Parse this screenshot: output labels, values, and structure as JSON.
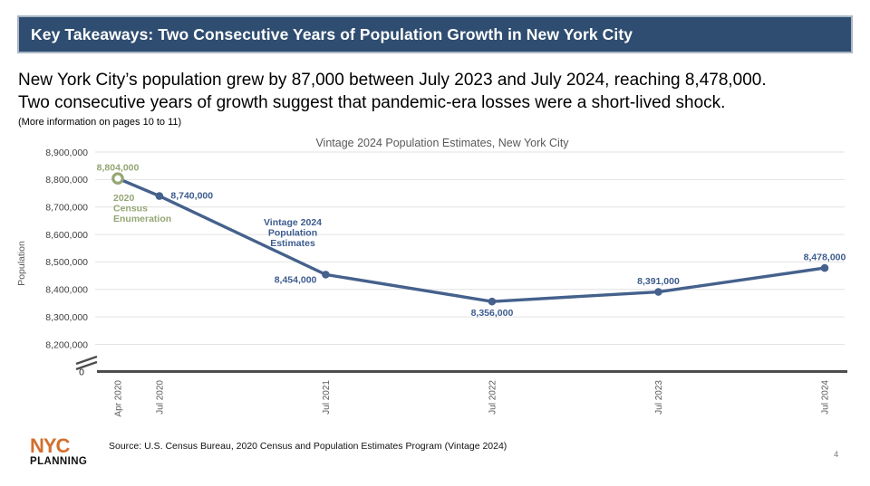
{
  "slide": {
    "title": "Key Takeaways: Two Consecutive Years of Population Growth in New York City",
    "body_line1": "New York City’s population grew by 87,000 between July 2023 and July 2024, reaching 8,478,000.",
    "body_line2": "Two consecutive years of growth suggest that pandemic-era losses were a short-lived shock.",
    "note": "(More information on pages 10 to 11)",
    "page_number": "4"
  },
  "footer": {
    "logo_line1": "NYC",
    "logo_line2": "PLANNING",
    "source": "Source: U.S. Census Bureau, 2020 Census and Population Estimates Program (Vintage 2024)"
  },
  "colors": {
    "header_bg": "#2f4d70",
    "line_navy": "#45618c",
    "label_navy": "#3d5c8f",
    "census_green": "#95a674",
    "axis_dark": "#4d4d4d",
    "tick_gray": "#595959",
    "ytick_gray": "#404040",
    "grid_gray": "#e2e2e2",
    "title_gray": "#595959",
    "logo_orange": "#d2702e"
  },
  "chart_data": {
    "type": "line",
    "title": "Vintage 2024 Population Estimates, New York City",
    "ylabel": "Population",
    "x": [
      "Apr 2020",
      "Jul 2020",
      "Jul 2021",
      "Jul 2022",
      "Jul 2023",
      "Jul 2024"
    ],
    "x_months": [
      0,
      3,
      15,
      27,
      39,
      51
    ],
    "values": [
      8804000,
      8740000,
      8454000,
      8356000,
      8391000,
      8478000
    ],
    "point_labels": [
      "8,804,000",
      "8,740,000",
      "8,454,000",
      "8,356,000",
      "8,391,000",
      "8,478,000"
    ],
    "point_label_pos": [
      "above",
      "right",
      "left",
      "below",
      "above",
      "above"
    ],
    "point_label_color_keys": [
      "census_green",
      "label_navy",
      "label_navy",
      "label_navy",
      "label_navy",
      "label_navy"
    ],
    "first_point_style": "open-circle-green",
    "y_tick_labels": [
      "8,900,000",
      "8,800,000",
      "8,700,000",
      "8,600,000",
      "8,500,000",
      "8,400,000",
      "8,300,000",
      "8,200,000"
    ],
    "y_tick_values": [
      8900000,
      8800000,
      8700000,
      8600000,
      8500000,
      8400000,
      8300000,
      8200000
    ],
    "zero_label": "0",
    "ylim": [
      8200000,
      8900000
    ],
    "axis_break": true,
    "grid": true,
    "legend": "none",
    "annotations": [
      {
        "lines": [
          "2020",
          "Census",
          "Enumeration"
        ],
        "color_key": "census_green",
        "x": 125,
        "y": 72,
        "line_height": 11.5,
        "align": "start"
      },
      {
        "lines": [
          "Vintage 2024",
          "Population",
          "Estimates"
        ],
        "color_key": "label_navy",
        "x": 323,
        "y": 99,
        "line_height": 11.5,
        "align": "middle"
      }
    ]
  }
}
